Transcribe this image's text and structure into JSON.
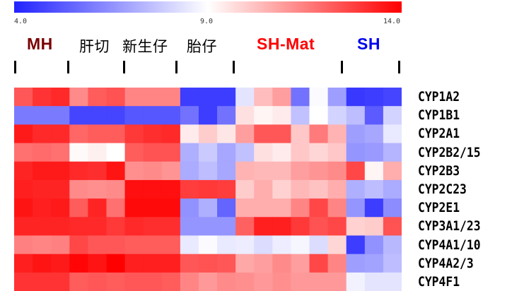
{
  "colorbar": {
    "min_label": "4.0",
    "mid_label": "9.0",
    "max_label": "14.0",
    "min": 4.0,
    "mid": 9.0,
    "max": 14.0,
    "low_color": "#2222ff",
    "mid_color": "#ffffff",
    "high_color": "#ff0000"
  },
  "groups": [
    {
      "label": "MH",
      "color": "#7a0000"
    },
    {
      "label": "肝切",
      "color": "#000000"
    },
    {
      "label": "新生仔",
      "color": "#000000"
    },
    {
      "label": "胎仔",
      "color": "#000000"
    },
    {
      "label": "SH-Mat",
      "color": "#ff0000"
    },
    {
      "label": "SH",
      "color": "#0000ee"
    }
  ],
  "chart_data": {
    "type": "heatmap",
    "title": "",
    "rows": [
      "CYP1A2",
      "CYP1B1",
      "CYP2A1",
      "CYP2B2/15",
      "CYP2B3",
      "CYP2C23",
      "CYP2E1",
      "CYP3A1/23",
      "CYP4A1/10",
      "CYP4A2/3",
      "CYP4F1"
    ],
    "columns": 21,
    "color_range": [
      4.0,
      14.0
    ],
    "values": [
      [
        12.3,
        13.0,
        13.2,
        11.3,
        12.2,
        12.4,
        11.4,
        11.4,
        11.4,
        4.6,
        4.6,
        4.6,
        8.4,
        10.3,
        10.9,
        5.8,
        8.9,
        6.8,
        4.5,
        4.6,
        4.8
      ],
      [
        6.0,
        6.0,
        6.0,
        4.8,
        4.8,
        4.8,
        5.2,
        5.2,
        5.2,
        5.8,
        4.6,
        5.8,
        9.6,
        9.2,
        9.4,
        7.6,
        9.0,
        8.0,
        7.5,
        5.3,
        8.0
      ],
      [
        13.5,
        13.2,
        13.2,
        12.0,
        12.2,
        12.2,
        12.9,
        13.1,
        13.2,
        9.4,
        10.0,
        9.5,
        10.9,
        12.3,
        12.3,
        10.1,
        11.6,
        10.5,
        6.8,
        7.0,
        8.5
      ],
      [
        11.8,
        11.9,
        11.8,
        9.1,
        9.3,
        9.0,
        12.2,
        12.4,
        12.4,
        7.2,
        7.8,
        7.0,
        7.6,
        9.6,
        9.4,
        10.1,
        9.8,
        10.1,
        6.6,
        6.7,
        7.3
      ],
      [
        13.3,
        13.5,
        13.5,
        13.2,
        13.1,
        13.6,
        11.2,
        11.3,
        11.1,
        7.1,
        7.5,
        7.0,
        10.5,
        10.4,
        10.4,
        10.9,
        11.1,
        11.3,
        12.6,
        9.2,
        10.6
      ],
      [
        13.4,
        13.3,
        13.3,
        11.3,
        11.2,
        11.3,
        13.7,
        13.7,
        13.7,
        12.8,
        12.9,
        12.8,
        10.0,
        10.6,
        9.9,
        10.4,
        10.2,
        10.6,
        7.2,
        7.5,
        7.1
      ],
      [
        13.6,
        13.4,
        13.5,
        12.2,
        13.3,
        11.8,
        13.8,
        13.8,
        13.8,
        6.5,
        7.2,
        5.5,
        10.6,
        10.6,
        10.6,
        11.4,
        12.6,
        11.4,
        6.6,
        4.6,
        6.4
      ],
      [
        13.3,
        13.3,
        13.3,
        13.2,
        13.2,
        12.9,
        13.2,
        13.1,
        13.1,
        6.6,
        6.6,
        6.6,
        12.1,
        13.4,
        13.4,
        12.9,
        12.4,
        12.6,
        9.9,
        10.0,
        12.4
      ],
      [
        11.5,
        11.4,
        11.5,
        12.6,
        12.3,
        12.3,
        12.2,
        12.2,
        12.2,
        8.5,
        8.9,
        8.5,
        8.6,
        8.2,
        8.6,
        8.8,
        8.2,
        9.8,
        4.6,
        6.5,
        7.4
      ],
      [
        13.4,
        13.6,
        13.5,
        13.9,
        13.6,
        14.0,
        13.4,
        13.4,
        13.4,
        12.3,
        12.4,
        12.3,
        10.7,
        10.9,
        11.3,
        10.9,
        12.6,
        11.4,
        6.8,
        6.9,
        7.5
      ],
      [
        13.0,
        13.0,
        13.0,
        12.2,
        12.3,
        12.2,
        12.3,
        12.3,
        12.2,
        11.4,
        11.0,
        11.3,
        11.2,
        11.0,
        11.2,
        11.0,
        11.0,
        11.0,
        8.7,
        8.4,
        8.4
      ]
    ]
  }
}
